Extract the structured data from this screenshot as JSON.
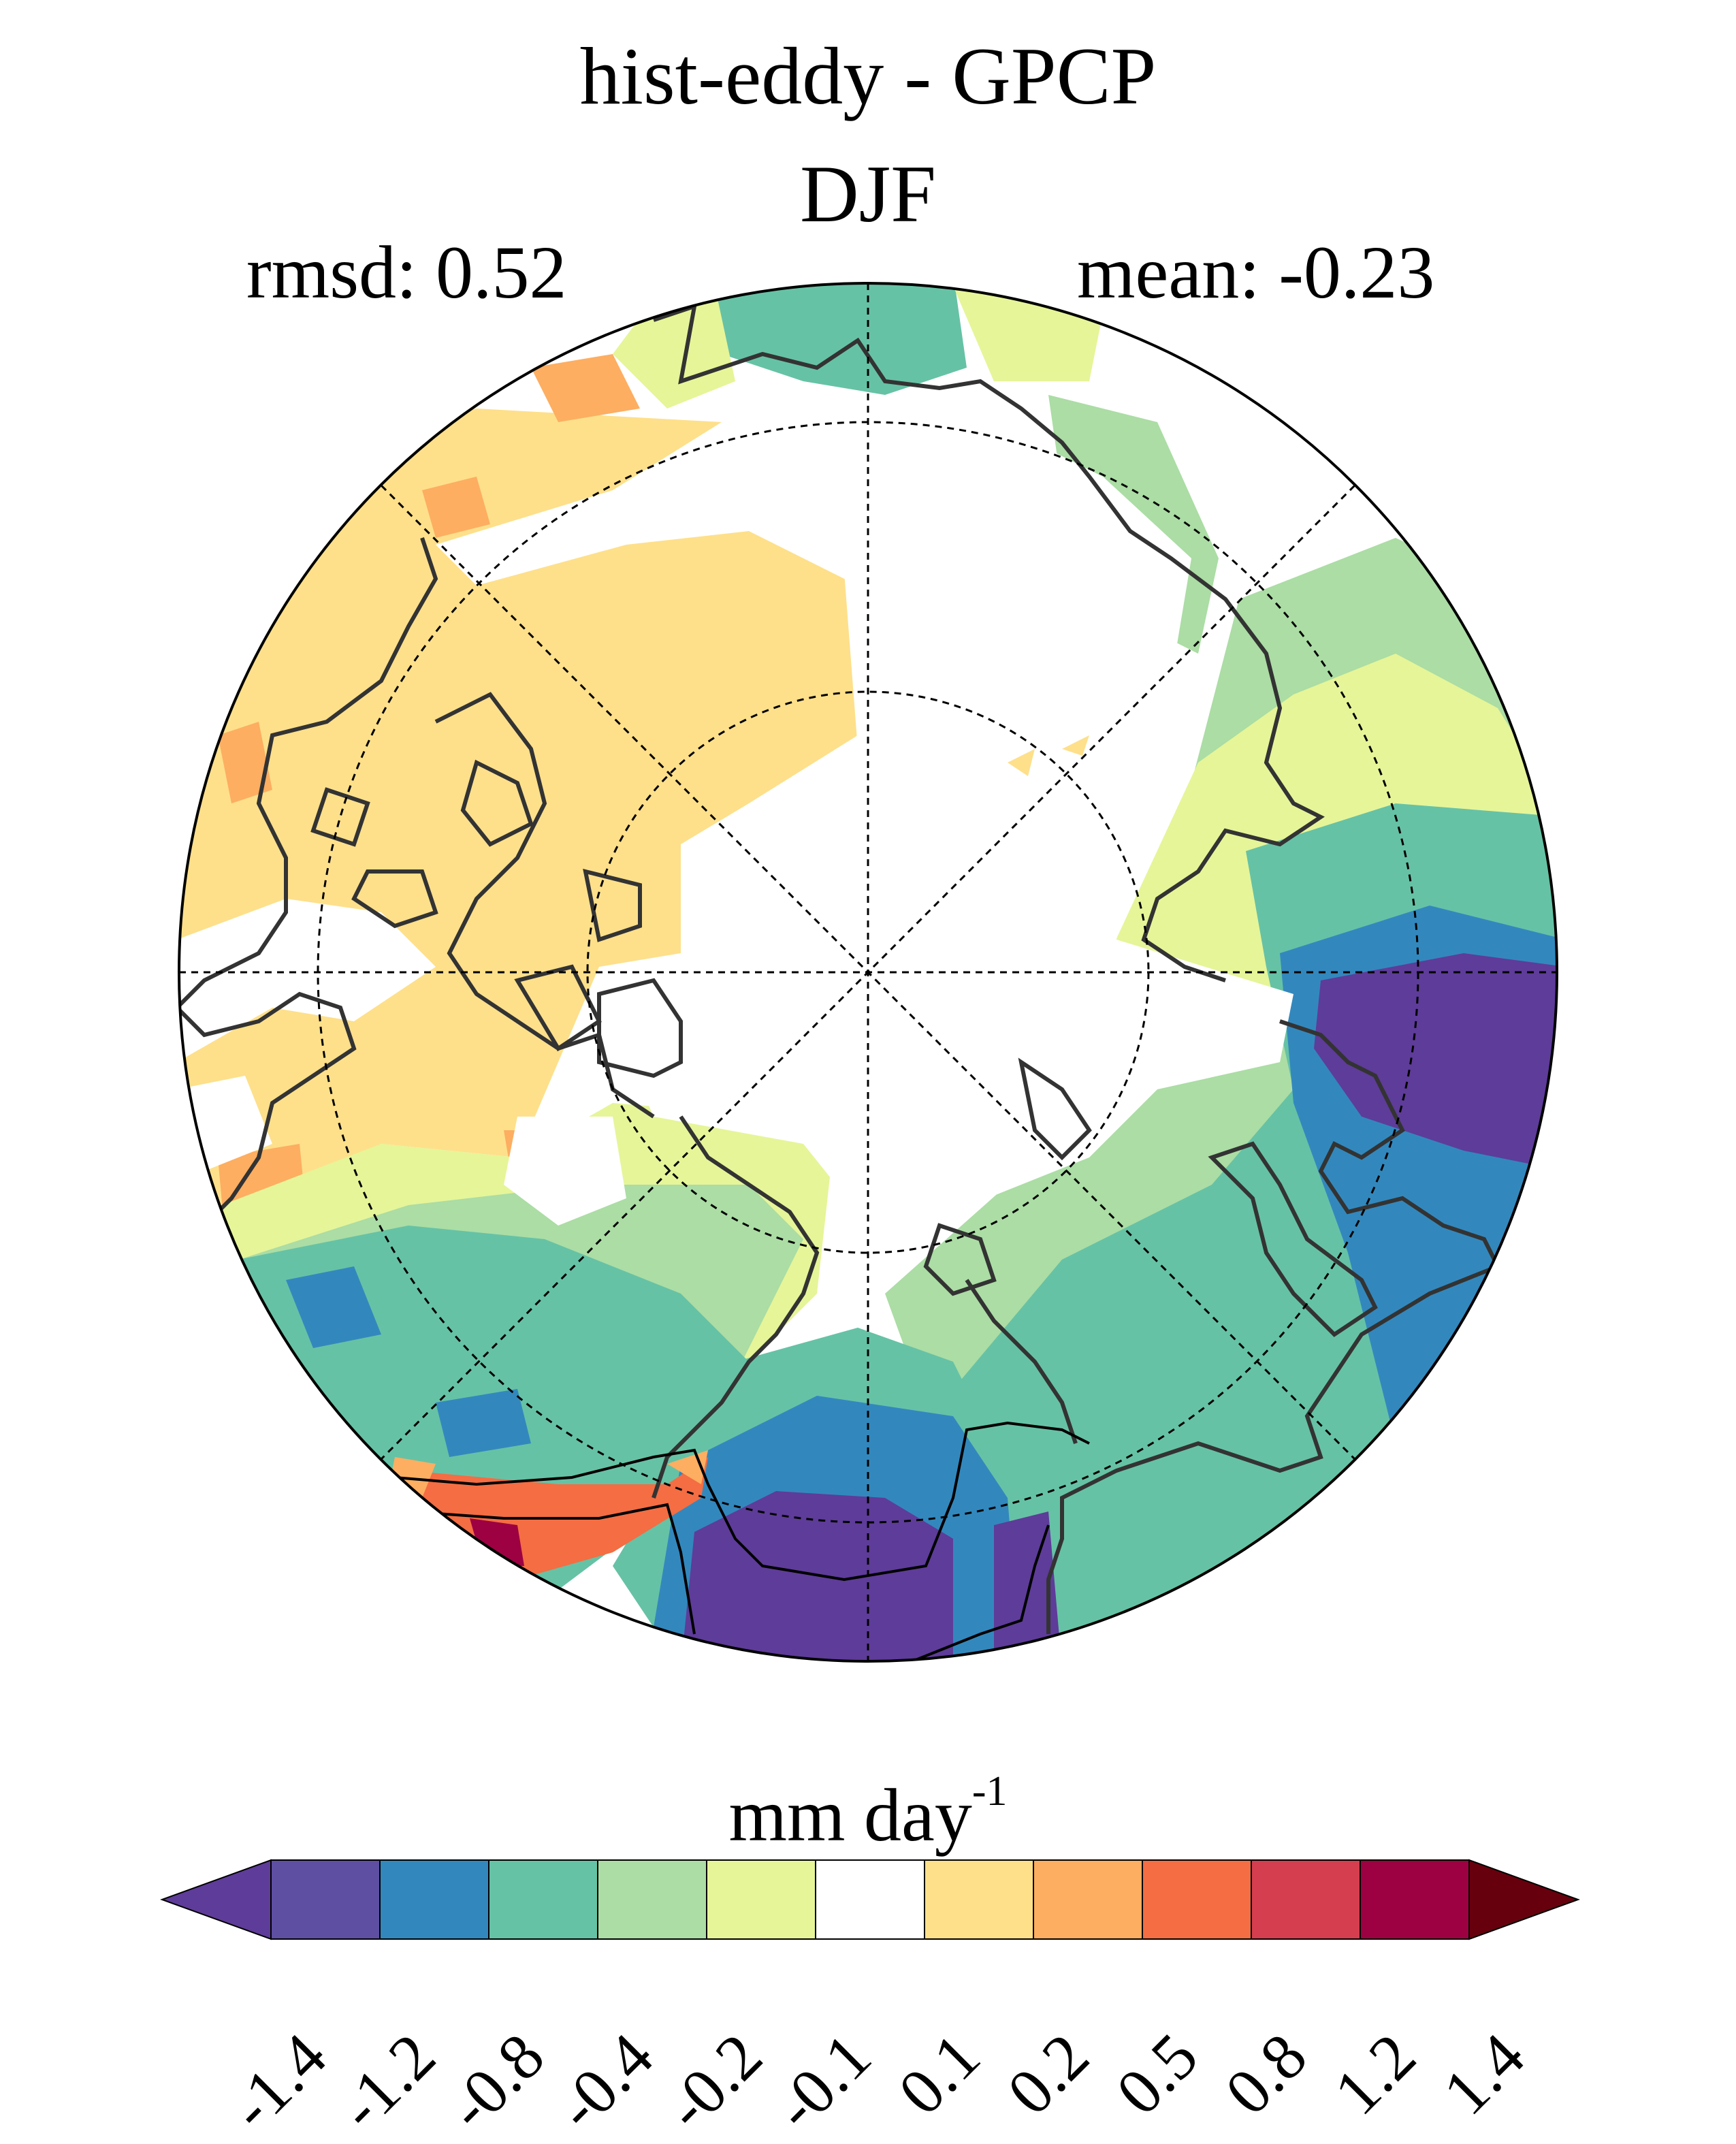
{
  "title": "hist-eddy - GPCP",
  "season": "DJF",
  "stats": {
    "rmsd_label": "rmsd: 0.52",
    "mean_label": "mean: -0.23",
    "rmsd": 0.52,
    "mean": -0.23
  },
  "map": {
    "projection": "north polar stereographic",
    "grid": true,
    "coastlines": true,
    "variable": "precipitation difference"
  },
  "colorbar": {
    "unit_base": "mm day",
    "unit_exp": "-1",
    "levels": [
      "-1.4",
      "-1.2",
      "-0.8",
      "-0.4",
      "-0.2",
      "-0.1",
      "0.1",
      "0.2",
      "0.5",
      "0.8",
      "1.2",
      "1.4"
    ],
    "colors": [
      "#5e3c99",
      "#3288bd",
      "#66c2a5",
      "#abdda4",
      "#e6f598",
      "#ffffff",
      "#fee08b",
      "#fdae61",
      "#f46d43",
      "#d53e4f",
      "#9e0142"
    ],
    "under_color": "#5e3c99",
    "over_color": "#67000d",
    "first_box_color": "#5e4fa2"
  }
}
